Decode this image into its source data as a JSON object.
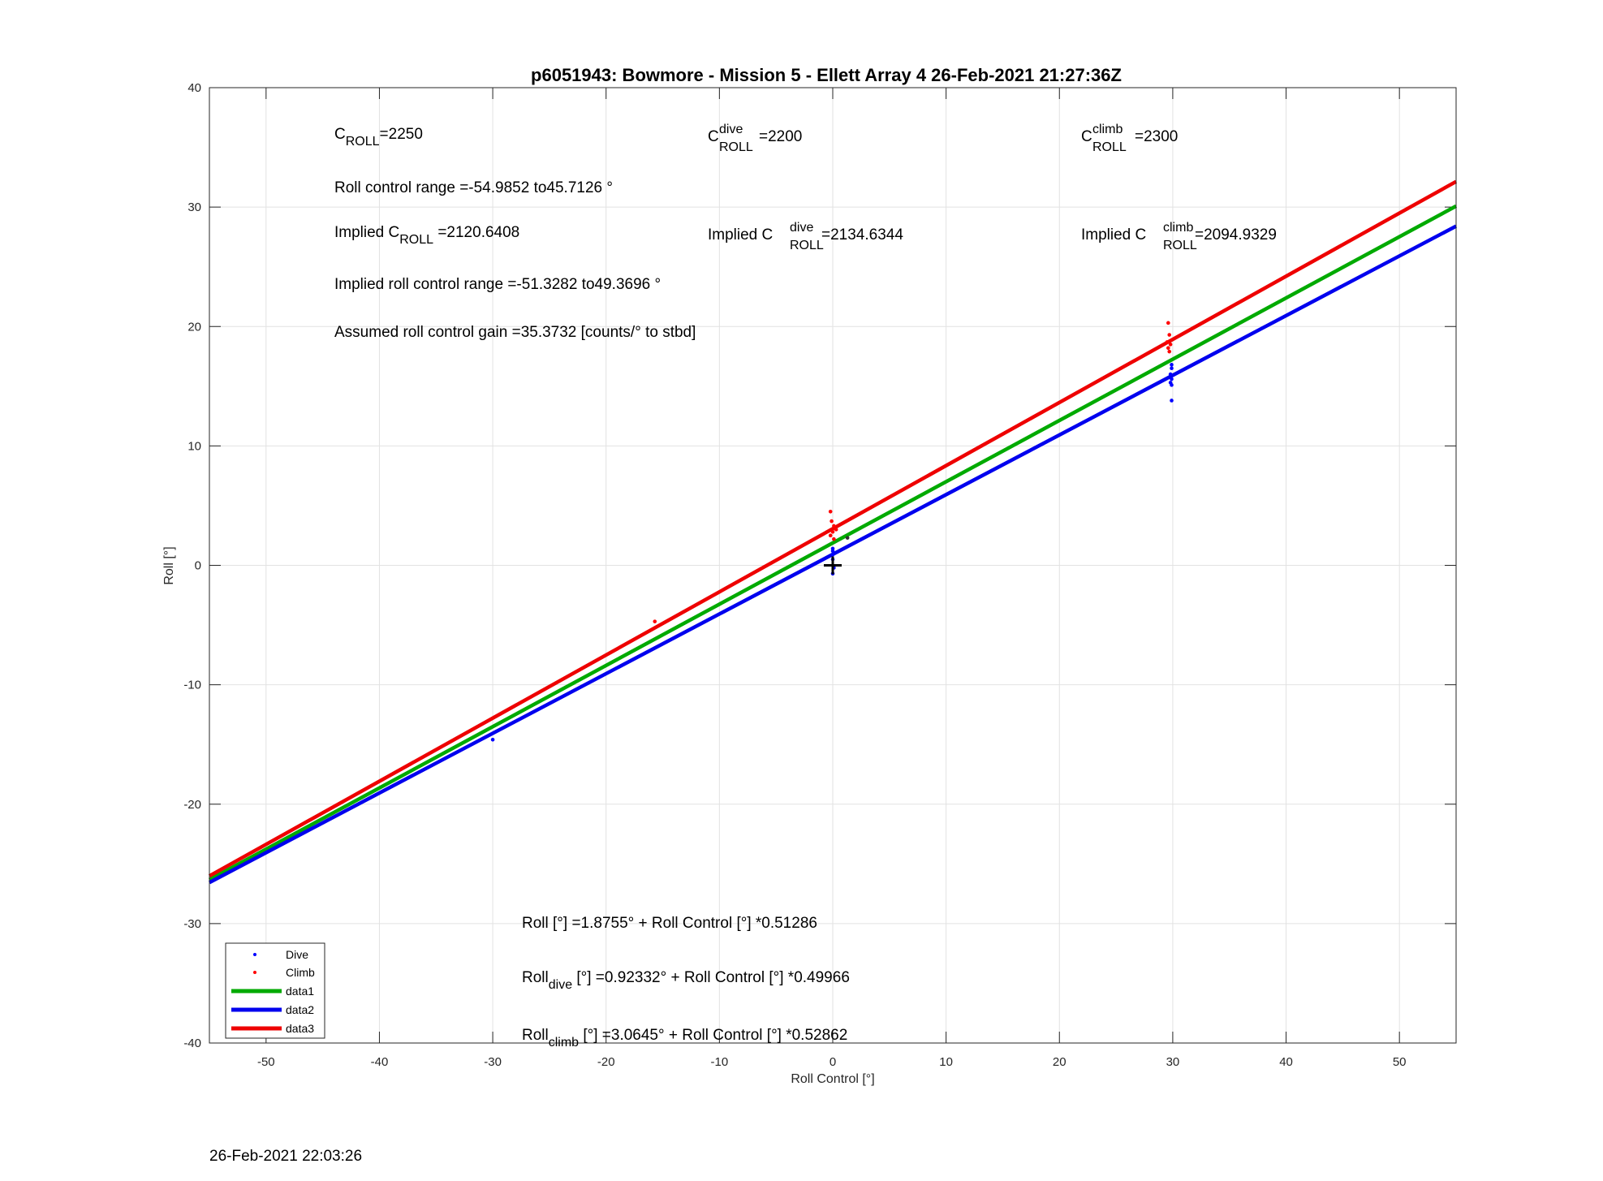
{
  "chart_data": {
    "type": "line",
    "title": "p6051943: Bowmore - Mission 5 - Ellett Array 4 26-Feb-2021 21:27:36Z",
    "xlabel": "Roll Control [°]",
    "ylabel": "Roll [°]",
    "xlim": [
      -55,
      55
    ],
    "ylim": [
      -40,
      40
    ],
    "xticks": [
      -50,
      -40,
      -30,
      -20,
      -10,
      0,
      10,
      20,
      30,
      40,
      50
    ],
    "yticks": [
      -40,
      -30,
      -20,
      -10,
      0,
      10,
      20,
      30,
      40
    ],
    "grid": true,
    "legend_position": "bottom-left",
    "series": [
      {
        "name": "Dive",
        "kind": "points",
        "color": "#0000ff",
        "points": [
          [
            -30.0,
            -14.6
          ],
          [
            0.0,
            1.2
          ],
          [
            0.0,
            0.9
          ],
          [
            0.0,
            0.5
          ],
          [
            0.1,
            -0.2
          ],
          [
            0.0,
            -0.7
          ],
          [
            0.0,
            1.4
          ],
          [
            29.9,
            16.8
          ],
          [
            29.9,
            16.5
          ],
          [
            29.8,
            16.0
          ],
          [
            29.9,
            15.6
          ],
          [
            29.8,
            15.3
          ],
          [
            29.9,
            15.1
          ],
          [
            29.9,
            13.8
          ]
        ]
      },
      {
        "name": "Climb",
        "kind": "points",
        "color": "#ff0000",
        "points": [
          [
            -15.7,
            -4.7
          ],
          [
            -0.2,
            4.5
          ],
          [
            -0.1,
            3.7
          ],
          [
            0.1,
            3.3
          ],
          [
            0.3,
            3.0
          ],
          [
            0.0,
            2.8
          ],
          [
            -0.2,
            2.5
          ],
          [
            0.1,
            2.2
          ],
          [
            29.6,
            20.3
          ],
          [
            29.7,
            19.3
          ],
          [
            29.5,
            18.7
          ],
          [
            29.8,
            18.5
          ],
          [
            29.6,
            18.2
          ],
          [
            29.7,
            17.9
          ]
        ]
      },
      {
        "name": "data1",
        "kind": "line",
        "color": "#00aa00",
        "intercept": 1.8755,
        "slope": 0.51286
      },
      {
        "name": "data2",
        "kind": "line",
        "color": "#0000ee",
        "intercept": 0.92332,
        "slope": 0.49966
      },
      {
        "name": "data3",
        "kind": "line",
        "color": "#ee0000",
        "intercept": 3.0645,
        "slope": 0.52862
      }
    ],
    "extra_points": [
      {
        "color": "#333333",
        "points": [
          [
            1.3,
            2.3
          ]
        ]
      }
    ],
    "marker": {
      "symbol": "+",
      "x": 0,
      "y": 0
    }
  },
  "annotations": {
    "c_roll": {
      "main": "C",
      "sub": "ROLL",
      "value": "=2250"
    },
    "c_roll_dive": {
      "main": "C",
      "sup": "dive",
      "sub": "ROLL",
      "value": "=2200"
    },
    "c_roll_climb": {
      "main": "C",
      "sup": "climb",
      "sub": "ROLL",
      "value": "=2300"
    },
    "roll_control_range": "Roll control range =-54.9852 to45.7126 °",
    "implied_c_roll": {
      "prefix": "Implied C",
      "sub": "ROLL",
      "value": " =2120.6408"
    },
    "implied_c_roll_dive": {
      "prefix": "Implied C",
      "sup": "dive",
      "sub": "ROLL",
      "value": " =2134.6344"
    },
    "implied_c_roll_climb": {
      "prefix": "Implied C",
      "sup": "climb",
      "sub": "ROLL",
      "value": " =2094.9329"
    },
    "implied_range": "Implied roll control range =-51.3282 to49.3696 °",
    "gain": "Assumed roll control gain =35.3732 [counts/° to stbd]",
    "fit_all": "Roll [°] =1.8755° + Roll Control [°] *0.51286",
    "fit_dive": {
      "main": "Roll",
      "sub": "dive",
      "rest": " [°] =0.92332° + Roll Control [°] *0.49966"
    },
    "fit_climb": {
      "main": "Roll",
      "sub": "climb",
      "rest": " [°] =3.0645° + Roll Control [°] *0.52862"
    }
  },
  "footer": {
    "timestamp": "26-Feb-2021 22:03:26"
  }
}
